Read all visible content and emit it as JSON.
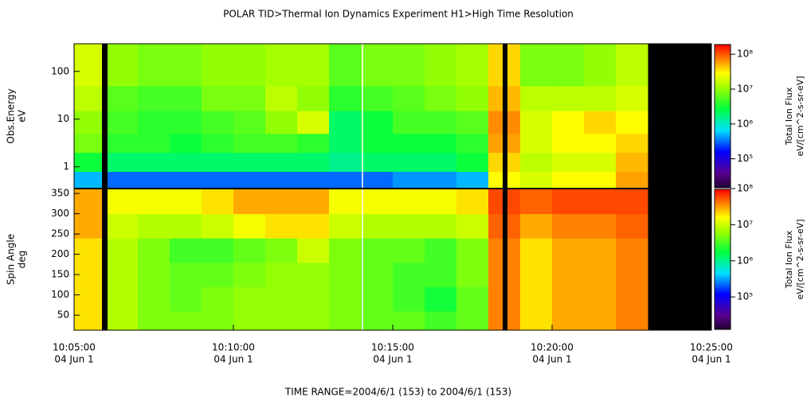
{
  "chart_data": {
    "type": "spectrogram",
    "title": "POLAR  TID>Thermal Ion Dynamics Experiment  H1>High Time Resolution",
    "footer": "TIME RANGE=2004/6/1 (153) to 2004/6/1 (153)",
    "x": [
      "10:05:00",
      "10:06:00",
      "10:07:00",
      "10:08:00",
      "10:09:00",
      "10:10:00",
      "10:11:00",
      "10:12:00",
      "10:13:00",
      "10:14:00",
      "10:15:00",
      "10:16:00",
      "10:17:00",
      "10:18:00",
      "10:19:00",
      "10:20:00",
      "10:21:00",
      "10:22:00",
      "10:23:00",
      "10:24:00"
    ],
    "xlim": [
      "10:05:00",
      "10:25:00"
    ],
    "xticks": [
      "10:05:00",
      "10:10:00",
      "10:15:00",
      "10:20:00",
      "10:25:00"
    ],
    "xtick_dates": [
      "04 Jun  1",
      "04 Jun  1",
      "04 Jun  1",
      "04 Jun  1",
      "04 Jun  1"
    ],
    "panels": [
      {
        "ylabel": [
          "Obs.Energy",
          "eV"
        ],
        "ylog": true,
        "ylim": [
          0.35,
          380
        ],
        "yticks": [
          1,
          10,
          100
        ],
        "y_bins": [
          0.35,
          0.8,
          2,
          5,
          15,
          50,
          380
        ],
        "z": [
          [
            500000.0,
            300000.0,
            300000.0,
            300000.0,
            300000.0,
            300000.0,
            300000.0,
            300000.0,
            300000.0,
            300000.0,
            400000.0,
            400000.0,
            500000.0,
            30000000.0,
            20000000.0,
            30000000.0,
            30000000.0,
            60000000.0,
            null,
            null
          ],
          [
            3000000.0,
            2000000.0,
            2000000.0,
            2000000.0,
            2000000.0,
            2000000.0,
            2000000.0,
            2000000.0,
            1500000.0,
            2000000.0,
            2000000.0,
            2000000.0,
            3000000.0,
            40000000.0,
            15000000.0,
            20000000.0,
            20000000.0,
            50000000.0,
            null,
            null
          ],
          [
            8000000.0,
            4000000.0,
            4000000.0,
            3000000.0,
            4000000.0,
            5000000.0,
            5000000.0,
            4000000.0,
            2000000.0,
            3000000.0,
            3000000.0,
            3000000.0,
            4000000.0,
            60000000.0,
            20000000.0,
            30000000.0,
            30000000.0,
            40000000.0,
            null,
            null
          ],
          [
            10000000.0,
            5000000.0,
            4000000.0,
            4000000.0,
            5000000.0,
            6000000.0,
            10000000.0,
            20000000.0,
            2000000.0,
            3000000.0,
            5000000.0,
            5000000.0,
            6000000.0,
            70000000.0,
            20000000.0,
            30000000.0,
            40000000.0,
            30000000.0,
            null,
            null
          ],
          [
            15000000.0,
            6000000.0,
            5000000.0,
            5000000.0,
            8000000.0,
            8000000.0,
            15000000.0,
            10000000.0,
            4000000.0,
            5000000.0,
            6000000.0,
            8000000.0,
            10000000.0,
            50000000.0,
            15000000.0,
            15000000.0,
            15000000.0,
            20000000.0,
            null,
            null
          ],
          [
            20000000.0,
            10000000.0,
            8000000.0,
            8000000.0,
            10000000.0,
            10000000.0,
            12000000.0,
            12000000.0,
            6000000.0,
            8000000.0,
            8000000.0,
            10000000.0,
            12000000.0,
            40000000.0,
            8000000.0,
            8000000.0,
            10000000.0,
            15000000.0,
            null,
            null
          ]
        ],
        "clim": [
          14000,
          200000000
        ],
        "cticks": [
          {
            "value": 100000,
            "label": "10⁵"
          },
          {
            "value": 1000000,
            "label": "10⁶"
          },
          {
            "value": 10000000,
            "label": "10⁷"
          },
          {
            "value": 100000000,
            "label": "10⁸"
          }
        ],
        "clabel": [
          "Total Ion Flux",
          "eV/[cm^2-s-sr-eV]"
        ]
      },
      {
        "ylabel": [
          "Spin Angle",
          "deg"
        ],
        "ylog": false,
        "ylim": [
          13,
          362
        ],
        "yticks": [
          50,
          100,
          150,
          200,
          250,
          300,
          350
        ],
        "y_bins": [
          13,
          60,
          120,
          180,
          240,
          300,
          362
        ],
        "z": [
          [
            20000000.0,
            8000000.0,
            5000000.0,
            5000000.0,
            5000000.0,
            6000000.0,
            6000000.0,
            6000000.0,
            5000000.0,
            4000000.0,
            4000000.0,
            3000000.0,
            4000000.0,
            40000000.0,
            20000000.0,
            30000000.0,
            30000000.0,
            40000000.0,
            null,
            null
          ],
          [
            20000000.0,
            8000000.0,
            5000000.0,
            4000000.0,
            5000000.0,
            6000000.0,
            6000000.0,
            6000000.0,
            5000000.0,
            4000000.0,
            3000000.0,
            2000000.0,
            4000000.0,
            40000000.0,
            20000000.0,
            30000000.0,
            30000000.0,
            40000000.0,
            null,
            null
          ],
          [
            20000000.0,
            8000000.0,
            5000000.0,
            4000000.0,
            4000000.0,
            5000000.0,
            6000000.0,
            6000000.0,
            5000000.0,
            4000000.0,
            3000000.0,
            3000000.0,
            5000000.0,
            40000000.0,
            20000000.0,
            30000000.0,
            30000000.0,
            40000000.0,
            null,
            null
          ],
          [
            20000000.0,
            8000000.0,
            5000000.0,
            3000000.0,
            3000000.0,
            4000000.0,
            5000000.0,
            10000000.0,
            5000000.0,
            4000000.0,
            4000000.0,
            3000000.0,
            5000000.0,
            40000000.0,
            20000000.0,
            30000000.0,
            30000000.0,
            40000000.0,
            null,
            null
          ],
          [
            30000000.0,
            10000000.0,
            8000000.0,
            8000000.0,
            10000000.0,
            15000000.0,
            20000000.0,
            20000000.0,
            10000000.0,
            8000000.0,
            8000000.0,
            8000000.0,
            10000000.0,
            50000000.0,
            30000000.0,
            40000000.0,
            40000000.0,
            50000000.0,
            null,
            null
          ],
          [
            30000000.0,
            15000000.0,
            15000000.0,
            15000000.0,
            20000000.0,
            30000000.0,
            30000000.0,
            30000000.0,
            15000000.0,
            15000000.0,
            15000000.0,
            15000000.0,
            20000000.0,
            60000000.0,
            50000000.0,
            60000000.0,
            60000000.0,
            60000000.0,
            null,
            null
          ]
        ],
        "clim": [
          12000,
          100000000
        ],
        "cticks": [
          {
            "value": 100000,
            "label": "10⁵"
          },
          {
            "value": 1000000,
            "label": "10⁶"
          },
          {
            "value": 10000000,
            "label": "10⁷"
          },
          {
            "value": 100000000,
            "label": "10⁸"
          }
        ],
        "clabel": [
          "Total Ion Flux",
          "eV/[cm^2-s-sr-eV]"
        ]
      }
    ]
  }
}
